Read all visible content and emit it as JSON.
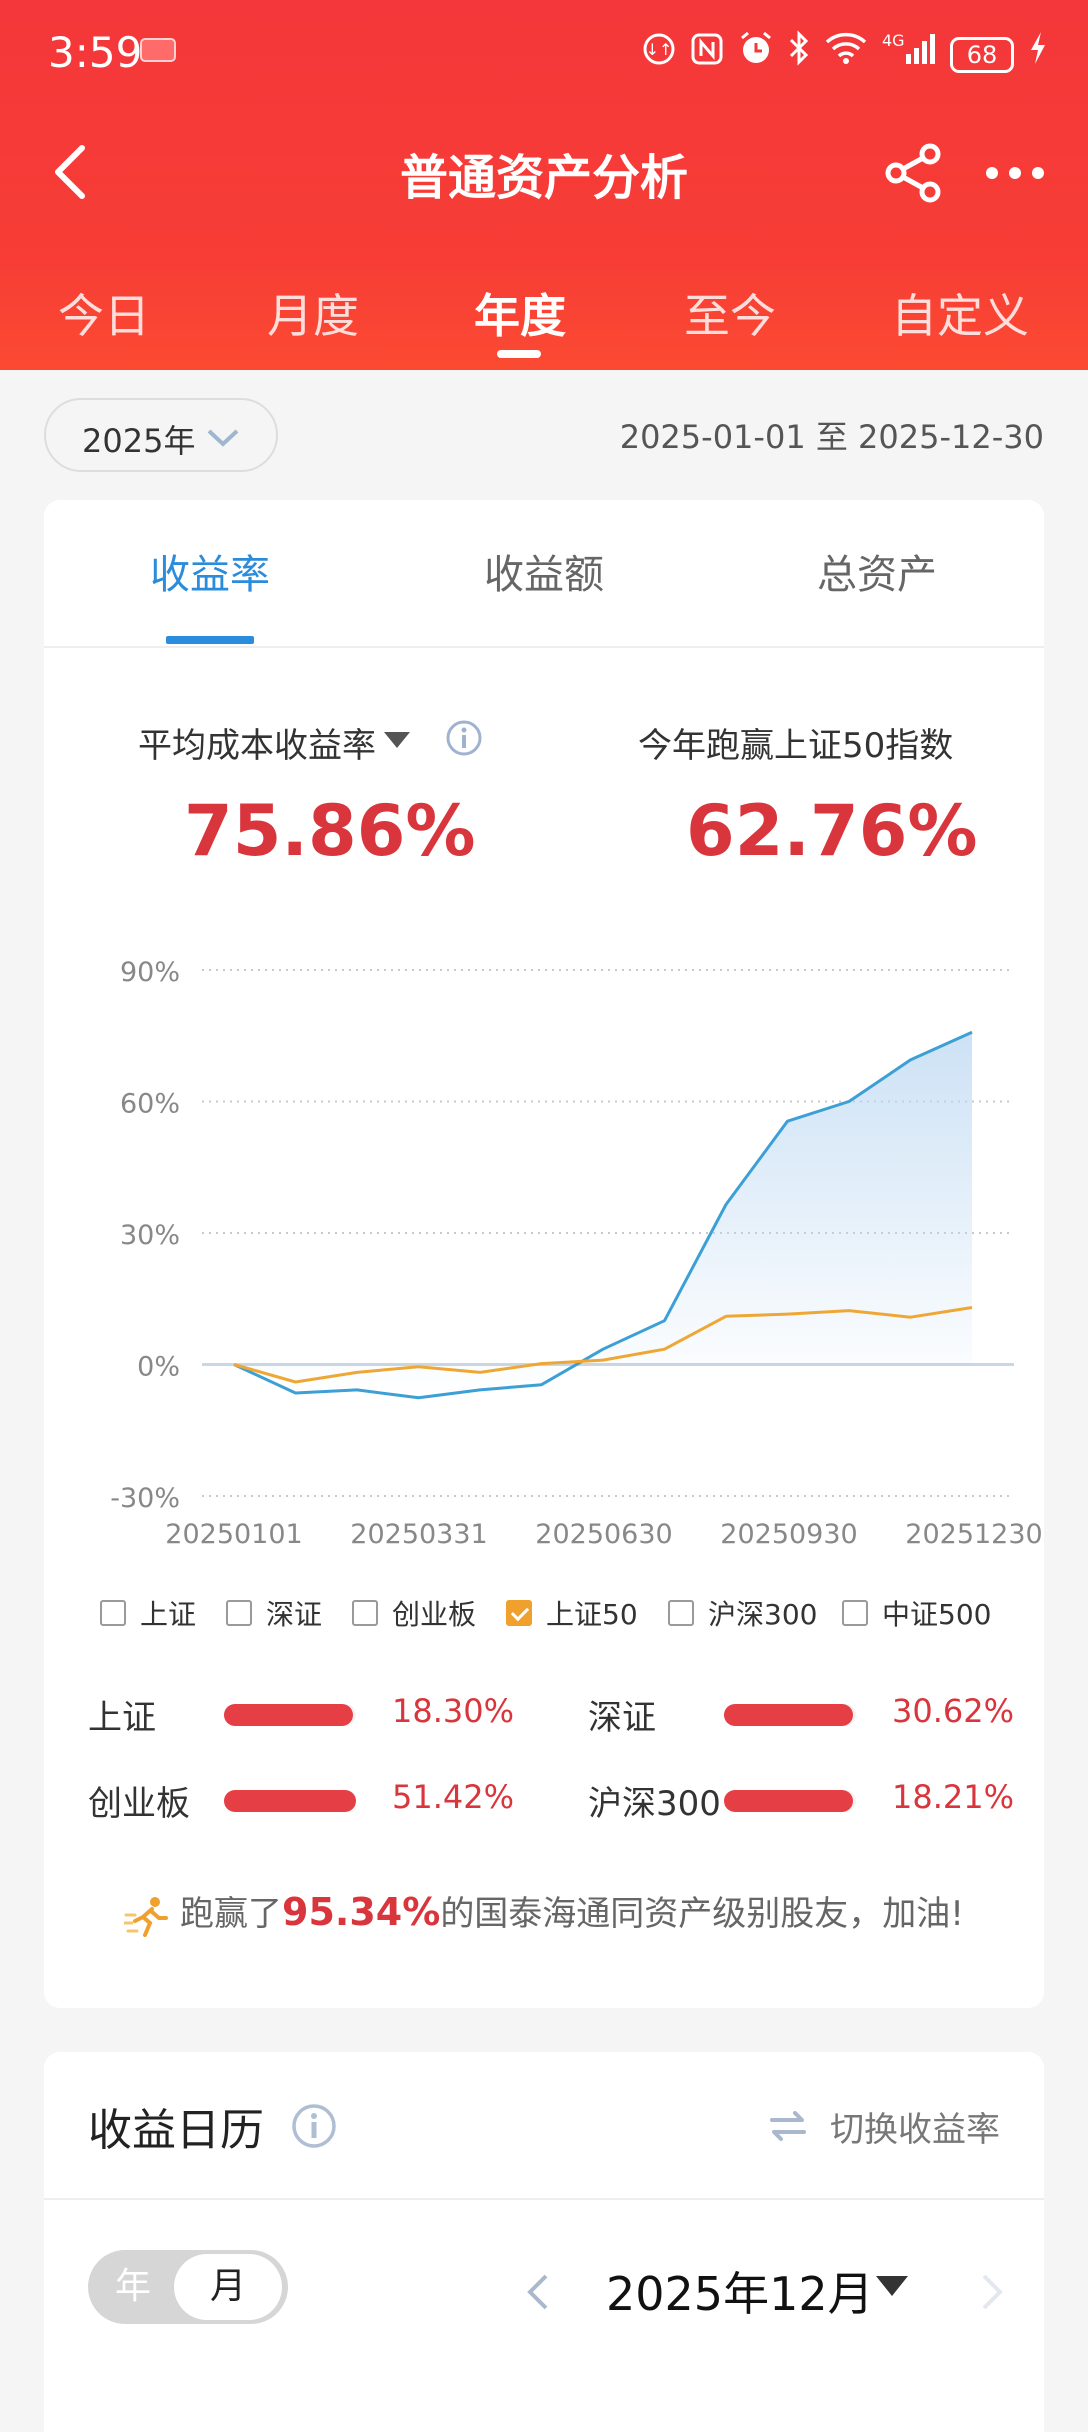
{
  "status_bar": {
    "time": "3:59",
    "icons": [
      "data-saver-icon",
      "nfc-icon",
      "alarm-icon",
      "bluetooth-icon",
      "wifi-icon",
      "signal-icon"
    ],
    "network": "4G",
    "battery": "68"
  },
  "nav": {
    "title": "普通资产分析"
  },
  "period_tabs": [
    {
      "label": "今日",
      "active": false
    },
    {
      "label": "月度",
      "active": false
    },
    {
      "label": "年度",
      "active": true
    },
    {
      "label": "至今",
      "active": false
    },
    {
      "label": "自定义",
      "active": false
    }
  ],
  "filter": {
    "year": "2025年",
    "date_range": "2025-01-01 至 2025-12-30"
  },
  "metric_tabs": [
    {
      "label": "收益率",
      "active": true
    },
    {
      "label": "收益额",
      "active": false
    },
    {
      "label": "总资产",
      "active": false
    }
  ],
  "metrics": {
    "left_label": "平均成本收益率",
    "left_value": "75.86%",
    "right_label": "今年跑赢上证50指数",
    "right_value": "62.76%"
  },
  "chart_data": {
    "type": "line",
    "y_ticks": [
      "90%",
      "60%",
      "30%",
      "0%",
      "-30%"
    ],
    "x_ticks": [
      "20250101",
      "20250331",
      "20250630",
      "20250930",
      "20251230"
    ],
    "ylim": [
      -30,
      90
    ],
    "grid": true,
    "series": [
      {
        "name": "portfolio",
        "color": "#3c9fd6",
        "fill": true,
        "values": [
          0,
          -6.5,
          -5.8,
          -7.6,
          -5.8,
          -4.6,
          3.5,
          10,
          36.5,
          55.5,
          60,
          69.5,
          75.8
        ]
      },
      {
        "name": "上证50",
        "color": "#eea734",
        "fill": false,
        "values": [
          0,
          -4,
          -1.8,
          -0.5,
          -1.8,
          0.2,
          1,
          3.5,
          11,
          11.5,
          12.3,
          10.8,
          13
        ]
      }
    ]
  },
  "legend": [
    {
      "label": "上证",
      "checked": false
    },
    {
      "label": "深证",
      "checked": false
    },
    {
      "label": "创业板",
      "checked": false
    },
    {
      "label": "上证50",
      "checked": true
    },
    {
      "label": "沪深300",
      "checked": false
    },
    {
      "label": "中证500",
      "checked": false
    }
  ],
  "comparisons": [
    {
      "label": "上证",
      "value": "18.30%",
      "fill": 0.98
    },
    {
      "label": "深证",
      "value": "30.62%",
      "fill": 0.98
    },
    {
      "label": "创业板",
      "value": "51.42%",
      "fill": 1.0
    },
    {
      "label": "沪深300",
      "value": "18.21%",
      "fill": 0.98
    }
  ],
  "rank": {
    "prefix": "跑赢了",
    "percent": "95.34%",
    "suffix": "的国泰海通同资产级别股友，加油!"
  },
  "calendar": {
    "title": "收益日历",
    "switch_label": "切换收益率",
    "seg_year": "年",
    "seg_month": "月",
    "month": "2025年12月"
  }
}
